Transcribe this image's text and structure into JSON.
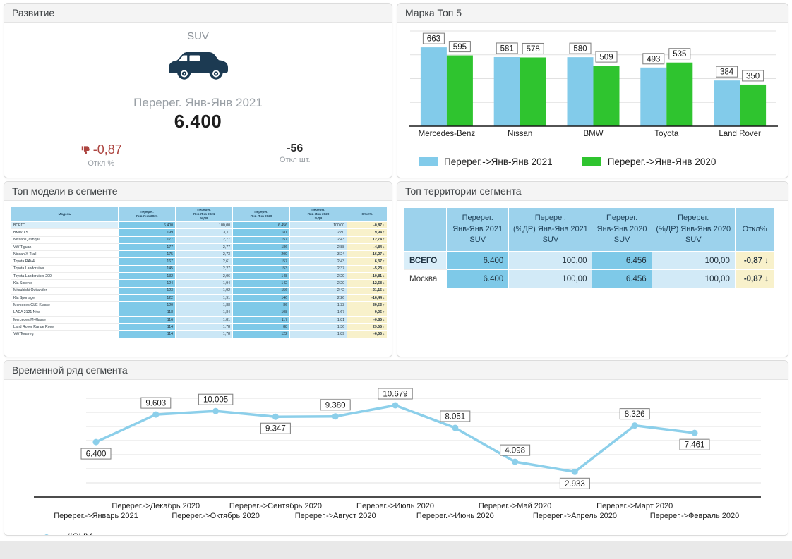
{
  "colors": {
    "bar_blue": "#82cbea",
    "bar_green": "#2fc42f",
    "line_blue": "#8ccfea",
    "negative_red": "#c0392b",
    "positive_green": "#1f9d1f",
    "kpi_red": "#ad4540",
    "table_header_blue": "#9cd2ec",
    "cell_count_blue": "#7ec9e8",
    "cell_pct_blue": "#cbe7f6",
    "cell_dev_yellow": "#f8f1cb",
    "car_icon_navy": "#1c3a52"
  },
  "panels": {
    "development": {
      "title": "Развитие",
      "segment": "SUV",
      "icon": "suv-car-icon",
      "metric_label": "Перерег. Янв-Янв 2021",
      "metric_value": "6.400",
      "deviation_pct": "-0,87",
      "deviation_pct_label": "Откл %",
      "deviation_units": "-56",
      "deviation_units_label": "Откл шт."
    },
    "brand_top5": {
      "title": "Марка Топ 5"
    },
    "top_models": {
      "title": "Топ модели в сегменте",
      "headers": [
        "Модель",
        "Перерег.\nЯнв-Янв 2021",
        "Перерег.\nЯнв-Янв 2021\n%ДР",
        "Перерег.\nЯнв-Янв 2020",
        "Перерег.\nЯнв-Янв 2020\n%ДР",
        "Откл%"
      ],
      "rows": [
        {
          "model": "ВСЕГО",
          "v2021": "6.400",
          "pct2021": "100,00",
          "v2020": "6.456",
          "pct2020": "100,00",
          "dev": "-0,87",
          "trend": "down",
          "total": true
        },
        {
          "model": "BMW X5",
          "v2021": "199",
          "pct2021": "3,11",
          "v2020": "181",
          "pct2020": "2,80",
          "dev": "9,94",
          "trend": "up"
        },
        {
          "model": "Nissan Qashqai",
          "v2021": "177",
          "pct2021": "2,77",
          "v2020": "157",
          "pct2020": "2,43",
          "dev": "12,74",
          "trend": "up"
        },
        {
          "model": "VW Tiguan",
          "v2021": "177",
          "pct2021": "2,77",
          "v2020": "186",
          "pct2020": "2,88",
          "dev": "-4,84",
          "trend": "down"
        },
        {
          "model": "Nissan X-Trail",
          "v2021": "175",
          "pct2021": "2,73",
          "v2020": "209",
          "pct2020": "3,24",
          "dev": "-16,27",
          "trend": "down"
        },
        {
          "model": "Toyota RAV4",
          "v2021": "167",
          "pct2021": "2,61",
          "v2020": "157",
          "pct2020": "2,43",
          "dev": "6,37",
          "trend": "up"
        },
        {
          "model": "Toyota Landcruiser",
          "v2021": "145",
          "pct2021": "2,27",
          "v2020": "153",
          "pct2020": "2,37",
          "dev": "-5,23",
          "trend": "down"
        },
        {
          "model": "Toyota Landcruiser 200",
          "v2021": "132",
          "pct2021": "2,06",
          "v2020": "148",
          "pct2020": "2,29",
          "dev": "-10,81",
          "trend": "down"
        },
        {
          "model": "Kia Sorento",
          "v2021": "124",
          "pct2021": "1,94",
          "v2020": "142",
          "pct2020": "2,20",
          "dev": "-12,68",
          "trend": "down"
        },
        {
          "model": "Mitsubishi Outlander",
          "v2021": "123",
          "pct2021": "1,92",
          "v2020": "156",
          "pct2020": "2,42",
          "dev": "-21,15",
          "trend": "down"
        },
        {
          "model": "Kia Sportage",
          "v2021": "122",
          "pct2021": "1,91",
          "v2020": "146",
          "pct2020": "2,26",
          "dev": "-16,44",
          "trend": "down"
        },
        {
          "model": "Mercedes GLE-Klasse",
          "v2021": "120",
          "pct2021": "1,88",
          "v2020": "86",
          "pct2020": "1,33",
          "dev": "39,53",
          "trend": "up"
        },
        {
          "model": "LADA 2121 Niva",
          "v2021": "118",
          "pct2021": "1,84",
          "v2020": "108",
          "pct2020": "1,67",
          "dev": "9,26",
          "trend": "up"
        },
        {
          "model": "Mercedes M-Klasse",
          "v2021": "116",
          "pct2021": "1,81",
          "v2020": "117",
          "pct2020": "1,81",
          "dev": "-0,85",
          "trend": "down"
        },
        {
          "model": "Land Rover Range Rover",
          "v2021": "114",
          "pct2021": "1,78",
          "v2020": "88",
          "pct2020": "1,36",
          "dev": "29,55",
          "trend": "up"
        },
        {
          "model": "VW Touareg",
          "v2021": "114",
          "pct2021": "1,78",
          "v2020": "122",
          "pct2020": "1,89",
          "dev": "-6,56",
          "trend": "down"
        }
      ]
    },
    "top_territories": {
      "title": "Топ территории сегмента",
      "headers": [
        "",
        "Перерег.\nЯнв-Янв 2021\nSUV",
        "Перерег.\n(%ДР) Янв-Янв 2021\nSUV",
        "Перерег.\nЯнв-Янв 2020\nSUV",
        "Перерег.\n(%ДР) Янв-Янв 2020\nSUV",
        "Откл%"
      ],
      "rows": [
        {
          "name": "ВСЕГО",
          "v2021": "6.400",
          "pct2021": "100,00",
          "v2020": "6.456",
          "pct2020": "100,00",
          "dev": "-0,87",
          "trend": "down",
          "total": true
        },
        {
          "name": "Москва",
          "v2021": "6.400",
          "pct2021": "100,00",
          "v2020": "6.456",
          "pct2020": "100,00",
          "dev": "-0,87",
          "trend": "down"
        }
      ]
    },
    "time_series": {
      "title": "Временной ряд сегмента"
    }
  },
  "chart_data": [
    {
      "id": "brand_top5",
      "type": "bar",
      "title": "Марка Топ 5",
      "categories": [
        "Mercedes-Benz",
        "Nissan",
        "BMW",
        "Toyota",
        "Land Rover"
      ],
      "series": [
        {
          "name": "Перерег.->Янв-Янв 2021",
          "color": "#82cbea",
          "values": [
            663,
            581,
            580,
            493,
            384
          ]
        },
        {
          "name": "Перерег.->Янв-Янв 2020",
          "color": "#2fc42f",
          "values": [
            595,
            578,
            509,
            535,
            350
          ]
        }
      ],
      "ylim": [
        0,
        800
      ],
      "grid_interval": 200,
      "grid": true,
      "legend_position": "bottom"
    },
    {
      "id": "segment_time_series",
      "type": "line",
      "title": "Временной ряд сегмента",
      "x": [
        "Перерег.->Январь 2021",
        "Перерег.->Декабрь 2020",
        "Перерег.->Октябрь 2020",
        "Перерег.->Сентябрь 2020",
        "Перерег.->Август 2020",
        "Перерег.->Июль 2020",
        "Перерег.->Июнь 2020",
        "Перерег.->Май 2020",
        "Перерег.->Апрель 2020",
        "Перерег.->Март 2020",
        "Перерег.->Февраль 2020"
      ],
      "values": [
        6400,
        9603,
        10005,
        9347,
        9380,
        10679,
        8051,
        4098,
        2933,
        8326,
        7461
      ],
      "point_labels": [
        "6.400",
        "9.603",
        "10.005",
        "9.347",
        "9.380",
        "10.679",
        "8.051",
        "4.098",
        "2.933",
        "8.326",
        "7.461"
      ],
      "label_side": [
        "below",
        "above",
        "above",
        "below",
        "above",
        "above",
        "above",
        "above",
        "below",
        "above",
        "below"
      ],
      "series_name": "#SUV",
      "color": "#8ccfea",
      "ylim": [
        0,
        11500
      ],
      "grid": true,
      "legend_position": "bottom-left"
    }
  ]
}
